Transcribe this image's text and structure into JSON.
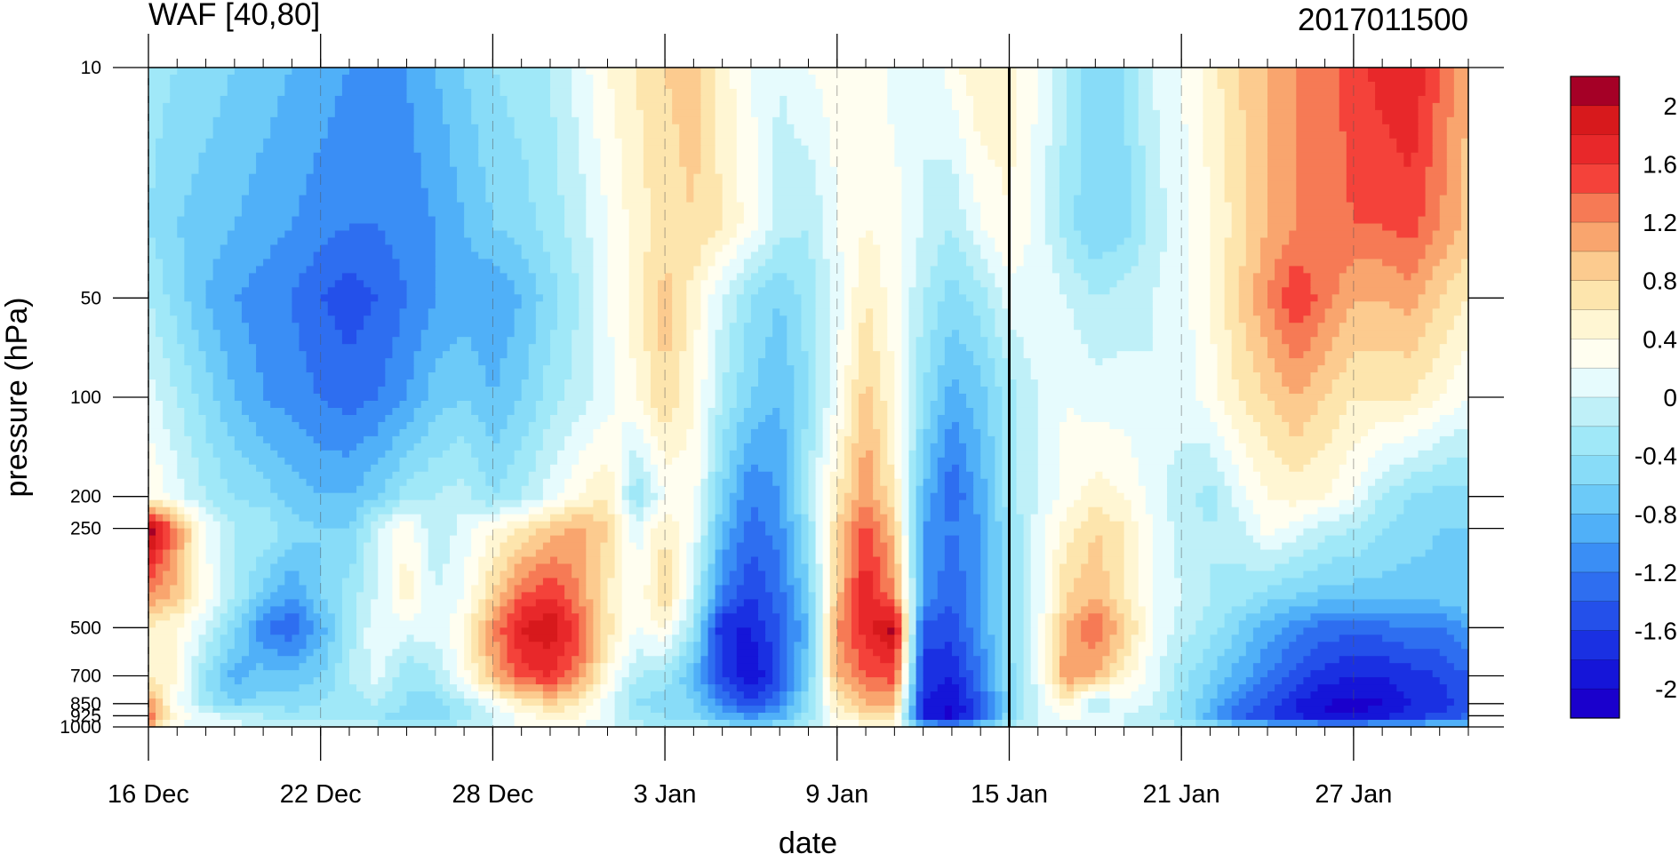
{
  "chart_data": {
    "type": "heatmap",
    "title": "WAF [40,80]",
    "title_right": "2017011500",
    "xlabel": "date",
    "ylabel": "pressure (hPa)",
    "x_range": [
      "16 Dec",
      "31 Jan"
    ],
    "x_tick_labels": [
      "16 Dec",
      "22 Dec",
      "28 Dec",
      "3 Jan",
      "9 Jan",
      "15 Jan",
      "21 Jan",
      "27 Jan"
    ],
    "y_scale": "log",
    "y_range": [
      1000,
      10
    ],
    "y_ticks": [
      10,
      50,
      100,
      200,
      250,
      500,
      700,
      850,
      925,
      1000
    ],
    "y_tick_labels": [
      "10",
      "50",
      "100",
      "200",
      "250",
      "500",
      "700",
      "850",
      "925",
      "1000"
    ],
    "reference_line": "15 Jan",
    "colorbar": {
      "levels": [
        -2.2,
        -2,
        -1.8,
        -1.6,
        -1.4,
        -1.2,
        -1,
        -0.8,
        -0.6,
        -0.4,
        -0.2,
        0,
        0.2,
        0.4,
        0.6,
        0.8,
        1,
        1.2,
        1.4,
        1.6,
        1.8,
        2,
        2.2
      ],
      "labels": [
        "2",
        "1.6",
        "1.2",
        "0.8",
        "0.4",
        "0",
        "-0.4",
        "-0.8",
        "-1.2",
        "-1.6",
        "-2"
      ],
      "colors_top_to_bottom": [
        "#a50026",
        "#d7191c",
        "#e8282a",
        "#f4423a",
        "#f67a55",
        "#f9a56e",
        "#fccb8f",
        "#fde5ad",
        "#fff6d3",
        "#fffef0",
        "#e6fbfd",
        "#bff0f8",
        "#a0e8f8",
        "#88dcf8",
        "#6ccaf8",
        "#50b0f8",
        "#3a8ef5",
        "#2e6ef0",
        "#2450ea",
        "#1a30e2",
        "#1515d8",
        "#1a00cc"
      ]
    },
    "field": {
      "x_days": [
        0,
        1,
        2,
        3,
        4,
        5,
        6,
        7,
        8,
        9,
        10,
        11,
        12,
        13,
        14,
        15,
        16,
        17,
        18,
        19,
        20,
        21,
        22,
        23,
        24,
        25,
        26,
        27,
        28,
        29,
        30,
        31,
        32,
        33,
        34,
        35,
        36,
        37,
        38,
        39,
        40,
        41,
        42,
        43,
        44,
        45,
        46
      ],
      "y_levels": [
        10,
        30,
        50,
        100,
        200,
        250,
        400,
        500,
        700,
        850,
        925,
        1000
      ],
      "values": [
        [
          -0.3,
          -0.4,
          -0.5,
          -0.6,
          -0.7,
          -0.8,
          -0.9,
          -1.0,
          -1.0,
          -1.0,
          -0.8,
          -0.6,
          -0.4,
          -0.3,
          -0.2,
          0.1,
          0.4,
          0.6,
          0.8,
          0.9,
          0.5,
          0.2,
          0.0,
          0.2,
          0.3,
          0.4,
          0.1,
          0.0,
          0.3,
          0.6,
          0.5,
          0.2,
          -0.2,
          -0.6,
          -0.4,
          0.0,
          0.2,
          0.5,
          0.8,
          1.0,
          1.2,
          1.3,
          1.5,
          1.7,
          1.8,
          1.4,
          1.0
        ],
        [
          -0.4,
          -0.6,
          -0.7,
          -0.8,
          -0.9,
          -1.0,
          -1.1,
          -1.2,
          -1.2,
          -1.1,
          -1.0,
          -0.8,
          -0.6,
          -0.5,
          -0.3,
          -0.1,
          0.2,
          0.5,
          0.7,
          0.8,
          0.6,
          0.3,
          -0.1,
          -0.2,
          0.2,
          0.4,
          0.3,
          0.0,
          -0.2,
          0.2,
          0.4,
          0.1,
          -0.3,
          -0.6,
          -0.5,
          -0.1,
          0.1,
          0.4,
          0.7,
          1.0,
          1.2,
          1.3,
          1.4,
          1.4,
          1.5,
          1.2,
          0.9
        ],
        [
          -0.2,
          -0.5,
          -0.8,
          -1.0,
          -1.1,
          -1.2,
          -1.4,
          -1.5,
          -1.4,
          -1.2,
          -1.0,
          -0.9,
          -1.0,
          -0.8,
          -0.5,
          -0.2,
          0.2,
          0.5,
          0.9,
          0.5,
          0.0,
          -0.4,
          -0.6,
          -0.3,
          0.1,
          0.6,
          0.3,
          -0.2,
          -0.5,
          -0.3,
          0.1,
          0.2,
          0.0,
          -0.2,
          -0.1,
          0.0,
          0.1,
          0.4,
          0.8,
          1.2,
          1.6,
          1.3,
          1.0,
          1.0,
          1.1,
          0.8,
          0.6
        ],
        [
          0.1,
          -0.2,
          -0.5,
          -0.8,
          -1.0,
          -1.1,
          -1.2,
          -1.3,
          -1.2,
          -1.0,
          -0.7,
          -0.6,
          -0.8,
          -0.6,
          -0.3,
          -0.1,
          0.1,
          0.4,
          0.8,
          0.4,
          -0.2,
          -0.6,
          -0.8,
          -0.4,
          0.2,
          0.9,
          0.4,
          -0.4,
          -0.9,
          -0.7,
          -0.3,
          0.0,
          0.2,
          0.1,
          0.1,
          0.0,
          0.1,
          0.3,
          0.6,
          0.8,
          1.0,
          0.8,
          0.6,
          0.6,
          0.6,
          0.4,
          0.2
        ],
        [
          0.4,
          0.1,
          -0.2,
          -0.4,
          -0.5,
          -0.7,
          -0.8,
          -0.8,
          -0.6,
          -0.3,
          -0.2,
          -0.1,
          -0.4,
          -0.2,
          0.1,
          0.4,
          0.6,
          -0.4,
          0.2,
          0.3,
          -0.6,
          -1.2,
          -1.0,
          -0.2,
          0.6,
          1.2,
          0.6,
          -0.8,
          -1.4,
          -0.9,
          -0.3,
          0.0,
          0.3,
          0.5,
          0.4,
          0.1,
          -0.1,
          -0.3,
          0.1,
          0.4,
          0.5,
          0.4,
          0.2,
          -0.2,
          -0.4,
          -0.5,
          -0.5
        ],
        [
          2.2,
          1.2,
          0.2,
          -0.2,
          -0.2,
          -0.5,
          -0.6,
          -0.6,
          0.0,
          0.4,
          -0.2,
          0.1,
          0.4,
          0.6,
          0.9,
          1.1,
          0.8,
          0.1,
          0.6,
          0.2,
          -0.8,
          -1.3,
          -1.1,
          -0.4,
          0.8,
          1.5,
          0.9,
          -1.0,
          -1.2,
          -1.0,
          -0.4,
          0.1,
          0.5,
          0.8,
          0.6,
          0.2,
          -0.1,
          -0.2,
          -0.1,
          0.3,
          0.1,
          -0.1,
          -0.2,
          -0.4,
          -0.5,
          -0.6,
          -0.6
        ],
        [
          1.2,
          0.9,
          0.3,
          -0.2,
          -0.7,
          -1.0,
          -0.6,
          -0.3,
          0.0,
          0.5,
          0.0,
          0.2,
          0.8,
          1.4,
          1.6,
          1.2,
          0.6,
          0.2,
          0.8,
          -0.1,
          -1.2,
          -1.6,
          -1.3,
          -0.6,
          0.9,
          1.8,
          1.2,
          -1.0,
          -1.4,
          -1.0,
          -0.4,
          0.1,
          0.8,
          1.0,
          0.6,
          0.2,
          0.0,
          -0.2,
          -0.3,
          -0.5,
          -0.6,
          -0.7,
          -0.7,
          -0.7,
          -0.7,
          -0.7,
          -0.6
        ],
        [
          0.6,
          0.4,
          0.0,
          -0.5,
          -1.2,
          -1.4,
          -0.9,
          -0.3,
          0.2,
          0.1,
          0.1,
          0.4,
          1.2,
          1.8,
          2.0,
          1.5,
          0.7,
          0.2,
          0.4,
          -0.3,
          -1.8,
          -1.8,
          -1.4,
          -0.8,
          1.2,
          1.7,
          2.1,
          -1.5,
          -1.5,
          -1.0,
          -0.4,
          0.1,
          1.0,
          1.4,
          0.9,
          0.2,
          -0.1,
          -0.3,
          -0.6,
          -0.9,
          -1.1,
          -1.3,
          -1.3,
          -1.3,
          -1.2,
          -1.2,
          -1.0
        ],
        [
          0.6,
          0.4,
          -0.4,
          -0.9,
          -0.7,
          -0.7,
          -0.6,
          -0.2,
          0.1,
          -0.4,
          -0.2,
          0.3,
          1.0,
          1.5,
          1.6,
          1.2,
          0.4,
          -0.2,
          -0.3,
          -0.8,
          -1.6,
          -2.0,
          -1.5,
          -0.6,
          1.0,
          1.4,
          1.5,
          -1.7,
          -1.8,
          -1.2,
          -0.5,
          0.1,
          1.2,
          1.0,
          0.5,
          0.1,
          -0.3,
          -0.6,
          -0.9,
          -1.2,
          -1.5,
          -1.7,
          -1.8,
          -1.8,
          -1.7,
          -1.6,
          -1.4
        ],
        [
          1.2,
          0.2,
          -0.3,
          -0.6,
          -0.5,
          -0.5,
          -0.4,
          -0.3,
          -0.2,
          -0.4,
          -0.5,
          -0.2,
          0.2,
          0.6,
          0.8,
          0.6,
          0.1,
          -0.4,
          -0.5,
          -0.6,
          -1.2,
          -1.5,
          -1.2,
          -0.4,
          0.6,
          1.0,
          1.0,
          -1.8,
          -2.0,
          -1.4,
          -0.5,
          0.0,
          0.5,
          -0.2,
          0.1,
          0.0,
          -0.4,
          -0.8,
          -1.2,
          -1.5,
          -1.8,
          -2.0,
          -2.1,
          -2.0,
          -1.8,
          -1.7,
          -1.5
        ],
        [
          1.4,
          0.3,
          0.1,
          -0.1,
          -0.2,
          -0.3,
          -0.3,
          -0.4,
          -0.4,
          -0.5,
          -0.6,
          -0.3,
          0.0,
          0.3,
          0.5,
          0.4,
          0.1,
          -0.3,
          -0.4,
          -0.5,
          -0.9,
          -1.1,
          -0.9,
          -0.3,
          0.4,
          0.7,
          0.7,
          -1.9,
          -2.1,
          -1.4,
          -0.5,
          0.0,
          0.3,
          0.1,
          0.0,
          -0.1,
          -0.4,
          -0.9,
          -1.4,
          -1.6,
          -1.8,
          -2.0,
          -2.0,
          -1.9,
          -1.7,
          -1.6,
          -1.4
        ],
        [
          1.0,
          0.2,
          0.1,
          0.1,
          0.0,
          -0.1,
          -0.1,
          -0.1,
          -0.1,
          -0.2,
          -0.2,
          -0.1,
          0.0,
          0.2,
          0.3,
          0.2,
          0.0,
          -0.1,
          -0.2,
          -0.2,
          -0.4,
          -0.5,
          -0.4,
          -0.1,
          0.2,
          0.3,
          0.3,
          -0.8,
          -0.9,
          -0.6,
          -0.2,
          0.0,
          0.1,
          0.0,
          0.0,
          0.0,
          -0.2,
          -0.4,
          -0.6,
          -0.7,
          -0.8,
          -0.9,
          -0.9,
          -0.8,
          -0.7,
          -0.7,
          -0.6
        ]
      ]
    }
  }
}
